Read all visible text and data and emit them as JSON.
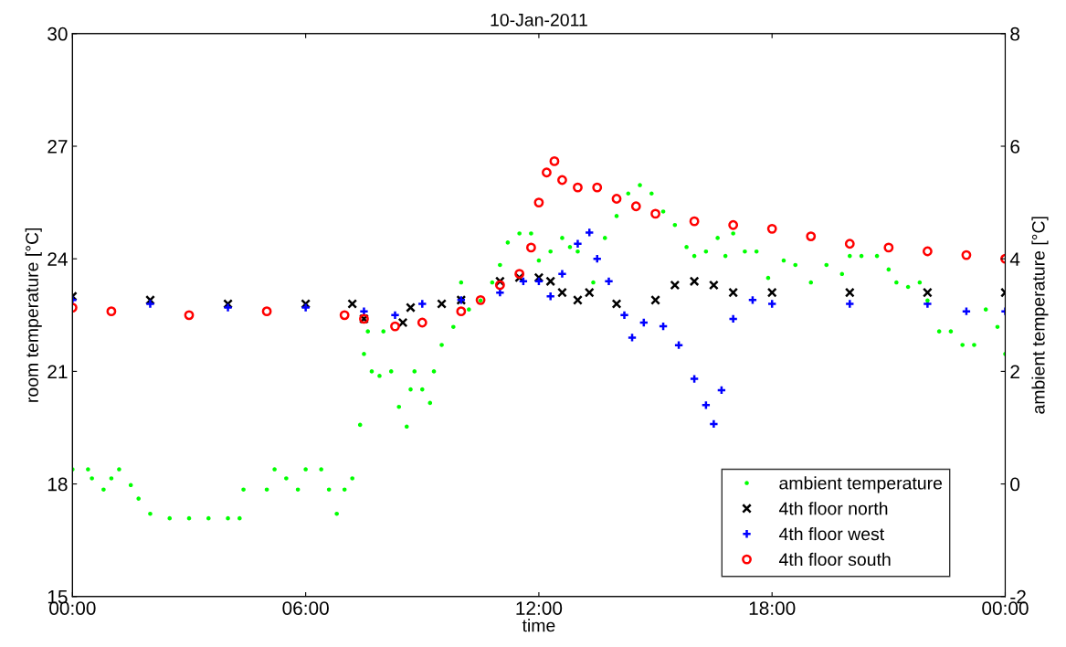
{
  "chart_data": {
    "type": "scatter",
    "title": "10-Jan-2011",
    "xlabel": "time",
    "ylabel": "room temperature [°C]",
    "y2label": "ambient temperature [°C]",
    "xlim": [
      0,
      24
    ],
    "xticks": [
      {
        "value": 0,
        "label": "00:00"
      },
      {
        "value": 6,
        "label": "06:00"
      },
      {
        "value": 12,
        "label": "12:00"
      },
      {
        "value": 18,
        "label": "18:00"
      },
      {
        "value": 24,
        "label": "00:00"
      }
    ],
    "ylim": [
      15,
      30
    ],
    "yticks": [
      15,
      18,
      21,
      24,
      27,
      30
    ],
    "y2lim": [
      -2,
      8
    ],
    "y2ticks": [
      -2,
      0,
      2,
      4,
      6,
      8
    ],
    "grid": false,
    "legend": "bottom right",
    "series": [
      {
        "name": "ambient temperature",
        "color": "#00ff00",
        "marker": "point",
        "axis": "y2",
        "x": [
          0,
          0.4,
          0.5,
          0.8,
          1.0,
          1.2,
          1.5,
          1.7,
          2.0,
          2.5,
          3.0,
          3.5,
          4.0,
          4.3,
          4.4,
          5.0,
          5.2,
          5.5,
          5.8,
          6.0,
          6.4,
          6.6,
          6.8,
          7.0,
          7.2,
          7.4,
          7.5,
          7.6,
          7.7,
          7.9,
          8.0,
          8.2,
          8.4,
          8.6,
          8.7,
          8.8,
          9.0,
          9.2,
          9.3,
          9.5,
          9.8,
          10.0,
          10.2,
          10.5,
          10.8,
          11.0,
          11.2,
          11.5,
          11.8,
          12.0,
          12.3,
          12.6,
          12.8,
          13.0,
          13.4,
          13.7,
          14.0,
          14.3,
          14.6,
          14.9,
          15.2,
          15.5,
          15.8,
          16.0,
          16.3,
          16.6,
          16.8,
          17.0,
          17.3,
          17.6,
          17.9,
          18.3,
          18.6,
          19.0,
          19.4,
          19.8,
          20.0,
          20.3,
          20.7,
          21.0,
          21.2,
          21.5,
          21.8,
          22.0,
          22.3,
          22.6,
          22.9,
          23.2,
          23.5,
          23.8,
          24.0
        ],
        "values": [
          0.26,
          0.26,
          0.1,
          -0.1,
          0.1,
          0.26,
          -0.02,
          -0.26,
          -0.53,
          -0.61,
          -0.61,
          -0.61,
          -0.61,
          -0.61,
          -0.1,
          -0.1,
          0.26,
          0.1,
          -0.1,
          0.26,
          0.26,
          -0.1,
          -0.53,
          -0.1,
          0.1,
          1.05,
          2.31,
          2.71,
          2.0,
          1.92,
          2.71,
          2.0,
          1.37,
          1.02,
          1.68,
          2.0,
          1.68,
          1.44,
          2.0,
          2.47,
          2.79,
          3.58,
          3.1,
          3.26,
          3.58,
          3.89,
          4.29,
          4.45,
          4.45,
          3.97,
          4.13,
          4.37,
          4.21,
          4.13,
          3.58,
          4.37,
          4.76,
          5.16,
          5.31,
          5.16,
          4.84,
          4.6,
          4.21,
          4.05,
          4.13,
          4.37,
          4.05,
          4.45,
          4.13,
          4.13,
          3.66,
          3.97,
          3.89,
          3.58,
          3.89,
          3.73,
          4.05,
          4.05,
          4.05,
          3.81,
          3.58,
          3.5,
          3.58,
          3.26,
          2.71,
          2.71,
          2.47,
          2.47,
          3.1,
          2.79,
          2.31
        ]
      },
      {
        "name": "4th floor north",
        "color": "#000000",
        "marker": "cross",
        "x": [
          0,
          2,
          4,
          6,
          7.2,
          7.5,
          8.5,
          8.7,
          9.5,
          10,
          11,
          11.5,
          12,
          12.3,
          12.6,
          13,
          13.3,
          14,
          15,
          15.5,
          16,
          16.5,
          17,
          18,
          20,
          22,
          24
        ],
        "values": [
          23.0,
          22.9,
          22.8,
          22.8,
          22.8,
          22.4,
          22.3,
          22.7,
          22.8,
          22.9,
          23.4,
          23.5,
          23.5,
          23.4,
          23.1,
          22.9,
          23.1,
          22.8,
          22.9,
          23.3,
          23.4,
          23.3,
          23.1,
          23.1,
          23.1,
          23.1,
          23.1
        ]
      },
      {
        "name": "4th floor west",
        "color": "#0000ff",
        "marker": "plus",
        "x": [
          0,
          2,
          4,
          6,
          7.5,
          8.3,
          9,
          10,
          11,
          11.6,
          12,
          12.3,
          12.6,
          13,
          13.3,
          13.5,
          13.8,
          14.2,
          14.4,
          14.7,
          15.2,
          15.6,
          16,
          16.3,
          16.5,
          16.7,
          17,
          17.5,
          18,
          20,
          22,
          23,
          24
        ],
        "values": [
          22.9,
          22.8,
          22.7,
          22.7,
          22.6,
          22.5,
          22.8,
          22.9,
          23.1,
          23.4,
          23.4,
          23.0,
          23.6,
          24.4,
          24.7,
          24.0,
          23.4,
          22.5,
          21.9,
          22.3,
          22.2,
          21.7,
          20.8,
          20.1,
          19.6,
          20.5,
          22.4,
          22.9,
          22.8,
          22.8,
          22.8,
          22.6,
          22.6
        ]
      },
      {
        "name": "4th floor south",
        "color": "#ff0000",
        "marker": "circle",
        "x": [
          0,
          1,
          3,
          5,
          7,
          7.5,
          8.3,
          9,
          10,
          10.5,
          11,
          11.5,
          11.8,
          12,
          12.2,
          12.4,
          12.6,
          13,
          13.5,
          14,
          14.5,
          15,
          16,
          17,
          18,
          19,
          20,
          21,
          22,
          23,
          24
        ],
        "values": [
          22.7,
          22.6,
          22.5,
          22.6,
          22.5,
          22.4,
          22.2,
          22.3,
          22.6,
          22.9,
          23.3,
          23.6,
          24.3,
          25.5,
          26.3,
          26.6,
          26.1,
          25.9,
          25.9,
          25.6,
          25.4,
          25.2,
          25.0,
          24.9,
          24.8,
          24.6,
          24.4,
          24.3,
          24.2,
          24.1,
          24.0
        ]
      }
    ]
  }
}
